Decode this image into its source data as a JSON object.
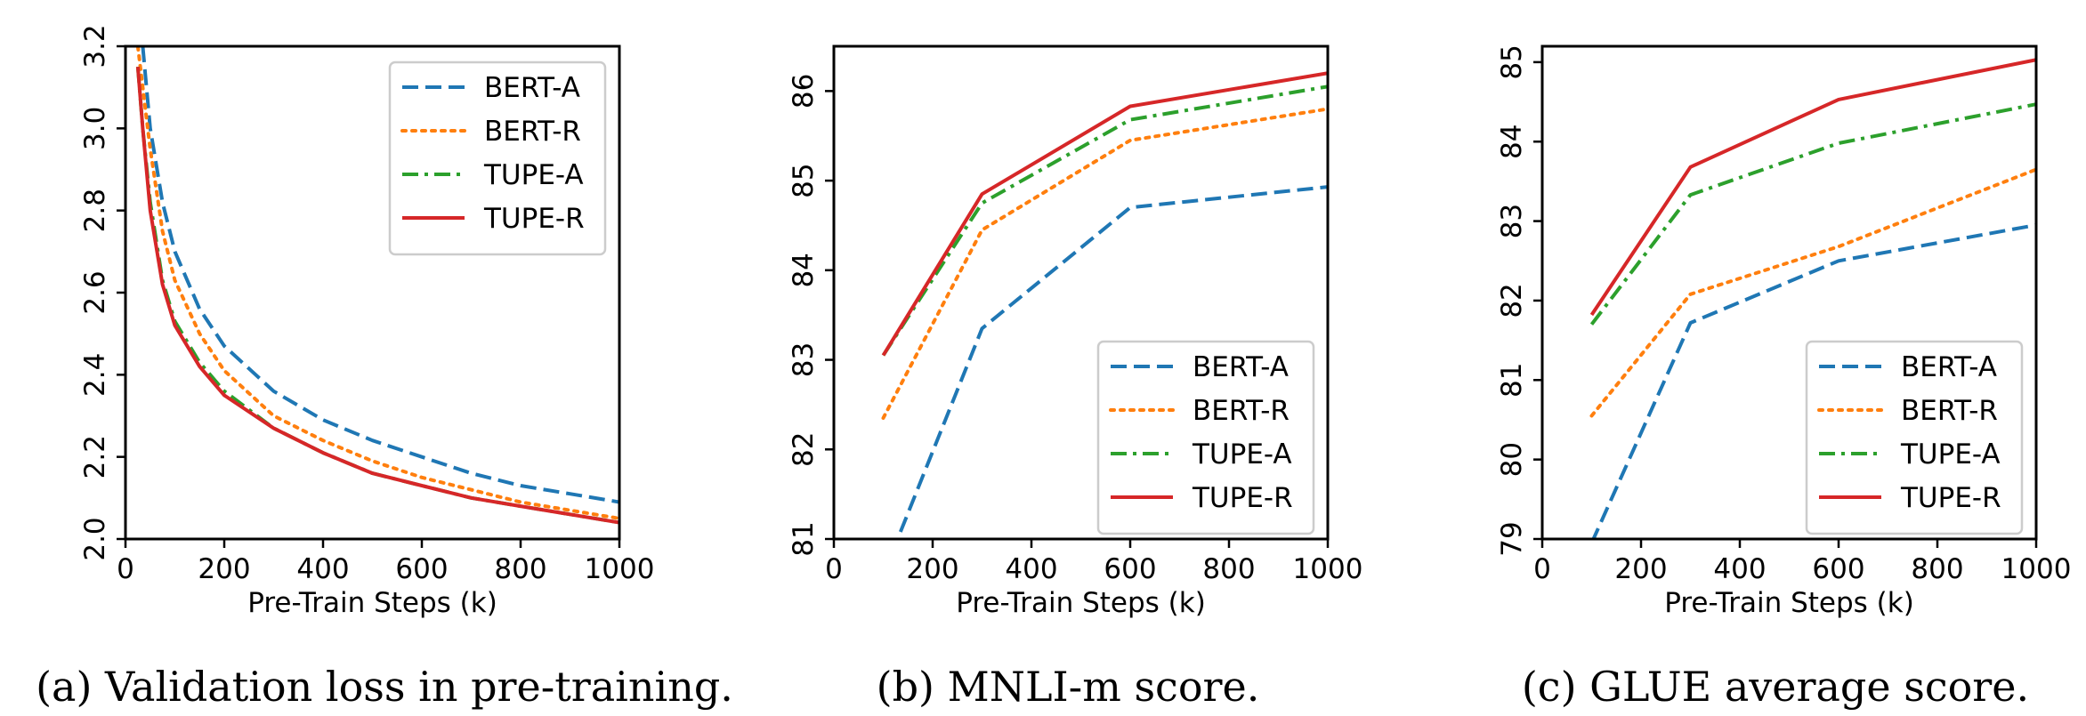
{
  "chart_data": [
    {
      "type": "line",
      "caption": "(a) Validation loss in pre-training.",
      "xlabel": "Pre-Train Steps (k)",
      "ylabel": "",
      "xlim": [
        0,
        1000
      ],
      "ylim": [
        2.0,
        3.2
      ],
      "xticks": [
        "0",
        "200",
        "400",
        "600",
        "800",
        "1000"
      ],
      "yticks": [
        "2.0",
        "2.2",
        "2.4",
        "2.6",
        "2.8",
        "3.0",
        "3.2"
      ],
      "legend_position": "top-right",
      "series": [
        {
          "name": "BERT-A",
          "color": "#1f77b4",
          "dash": "dashed",
          "x": [
            35,
            50,
            75,
            100,
            150,
            200,
            300,
            400,
            500,
            600,
            700,
            800,
            900,
            1000
          ],
          "y": [
            3.2,
            3.0,
            2.82,
            2.7,
            2.56,
            2.47,
            2.36,
            2.29,
            2.24,
            2.2,
            2.16,
            2.13,
            2.11,
            2.09
          ]
        },
        {
          "name": "BERT-R",
          "color": "#ff7f0e",
          "dash": "dotted",
          "x": [
            25,
            35,
            50,
            75,
            100,
            150,
            200,
            300,
            400,
            500,
            600,
            700,
            800,
            900,
            1000
          ],
          "y": [
            3.2,
            3.1,
            2.95,
            2.75,
            2.63,
            2.5,
            2.41,
            2.3,
            2.24,
            2.19,
            2.15,
            2.12,
            2.09,
            2.07,
            2.05
          ]
        },
        {
          "name": "TUPE-A",
          "color": "#2ca02c",
          "dash": "dashdot",
          "x": [
            25,
            35,
            50,
            75,
            100,
            150,
            200,
            300,
            400,
            500,
            600,
            700,
            800,
            900,
            1000
          ],
          "y": [
            3.15,
            3.0,
            2.82,
            2.63,
            2.53,
            2.43,
            2.36,
            2.27,
            2.21,
            2.16,
            2.13,
            2.1,
            2.08,
            2.06,
            2.04
          ]
        },
        {
          "name": "TUPE-R",
          "color": "#d62728",
          "dash": "solid",
          "x": [
            25,
            35,
            50,
            75,
            100,
            150,
            200,
            300,
            400,
            500,
            600,
            700,
            800,
            900,
            1000
          ],
          "y": [
            3.15,
            3.0,
            2.8,
            2.62,
            2.52,
            2.42,
            2.35,
            2.27,
            2.21,
            2.16,
            2.13,
            2.1,
            2.08,
            2.06,
            2.04
          ]
        }
      ]
    },
    {
      "type": "line",
      "caption": "(b) MNLI-m score.",
      "xlabel": "Pre-Train Steps (k)",
      "ylabel": "",
      "xlim": [
        0,
        1000
      ],
      "ylim": [
        81,
        86.5
      ],
      "xticks": [
        "0",
        "200",
        "400",
        "600",
        "800",
        "1000"
      ],
      "yticks": [
        "81",
        "82",
        "83",
        "84",
        "85",
        "86"
      ],
      "legend_position": "bottom-right",
      "series": [
        {
          "name": "BERT-A",
          "color": "#1f77b4",
          "dash": "dashed",
          "x": [
            100,
            300,
            600,
            1000
          ],
          "y": [
            80.6,
            83.35,
            84.7,
            84.93
          ]
        },
        {
          "name": "BERT-R",
          "color": "#ff7f0e",
          "dash": "dotted",
          "x": [
            100,
            300,
            600,
            1000
          ],
          "y": [
            82.35,
            84.45,
            85.45,
            85.8
          ]
        },
        {
          "name": "TUPE-A",
          "color": "#2ca02c",
          "dash": "dashdot",
          "x": [
            100,
            300,
            600,
            1000
          ],
          "y": [
            83.05,
            84.75,
            85.68,
            86.05
          ]
        },
        {
          "name": "TUPE-R",
          "color": "#d62728",
          "dash": "solid",
          "x": [
            100,
            300,
            600,
            1000
          ],
          "y": [
            83.05,
            84.85,
            85.83,
            86.2
          ]
        }
      ]
    },
    {
      "type": "line",
      "caption": "(c) GLUE average score.",
      "xlabel": "Pre-Train Steps (k)",
      "ylabel": "",
      "xlim": [
        0,
        1000
      ],
      "ylim": [
        79,
        85.2
      ],
      "xticks": [
        "0",
        "200",
        "400",
        "600",
        "800",
        "1000"
      ],
      "yticks": [
        "79",
        "80",
        "81",
        "82",
        "83",
        "84",
        "85"
      ],
      "legend_position": "bottom-right",
      "series": [
        {
          "name": "BERT-A",
          "color": "#1f77b4",
          "dash": "dashed",
          "x": [
            100,
            300,
            600,
            1000
          ],
          "y": [
            78.95,
            81.72,
            82.5,
            82.95
          ]
        },
        {
          "name": "BERT-R",
          "color": "#ff7f0e",
          "dash": "dotted",
          "x": [
            100,
            300,
            600,
            1000
          ],
          "y": [
            80.55,
            82.08,
            82.68,
            83.65
          ]
        },
        {
          "name": "TUPE-A",
          "color": "#2ca02c",
          "dash": "dashdot",
          "x": [
            100,
            300,
            600,
            1000
          ],
          "y": [
            81.7,
            83.33,
            83.98,
            84.47
          ]
        },
        {
          "name": "TUPE-R",
          "color": "#d62728",
          "dash": "solid",
          "x": [
            100,
            300,
            600,
            1000
          ],
          "y": [
            81.82,
            83.68,
            84.53,
            85.03
          ]
        }
      ]
    }
  ]
}
